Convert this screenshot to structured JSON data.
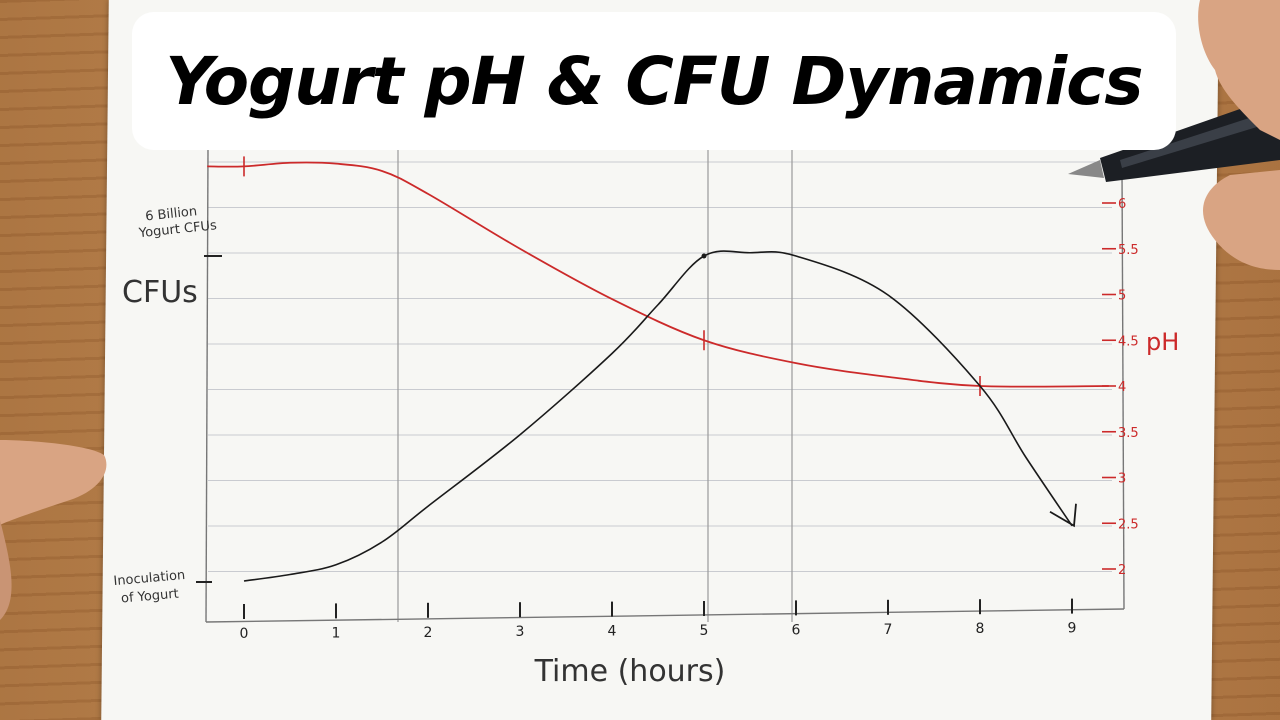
{
  "title": "Yogurt pH & CFU Dynamics",
  "chart_data": {
    "type": "line",
    "xlabel": "Time (hours)",
    "x_ticks": [
      "0",
      "1",
      "2",
      "3",
      "4",
      "5",
      "6",
      "7",
      "8",
      "9"
    ],
    "left_axis": {
      "label": "CFUs",
      "top_annotation": "6 Billion Yogurt CFUs",
      "bottom_annotation": "Inoculation of Yogurt"
    },
    "right_axis": {
      "label": "pH",
      "ticks": [
        "6",
        "5.5",
        "5",
        "4.5",
        "4",
        "3.5",
        "3",
        "2.5",
        "2"
      ],
      "ylim": [
        2,
        6.3
      ]
    },
    "series": [
      {
        "axis": "right",
        "color": "#cc2a2a",
        "x": [
          -0.4,
          0,
          0.5,
          1,
          1.5,
          2,
          3,
          4,
          5,
          6,
          7,
          8,
          9.4
        ],
        "y": [
          6.4,
          6.4,
          6.44,
          6.43,
          6.35,
          6.1,
          5.5,
          4.95,
          4.5,
          4.25,
          4.1,
          4.0,
          4.0
        ]
      },
      {
        "axis": "left",
        "color": "#1a1a1a",
        "x": [
          0,
          0.5,
          1,
          1.5,
          2,
          3,
          4,
          4.5,
          5,
          5.5,
          6,
          7,
          8,
          8.5,
          9
        ],
        "y": [
          0.0,
          0.02,
          0.05,
          0.12,
          0.23,
          0.45,
          0.7,
          0.85,
          1.0,
          1.01,
          1.0,
          0.88,
          0.6,
          0.38,
          0.17
        ]
      }
    ]
  }
}
